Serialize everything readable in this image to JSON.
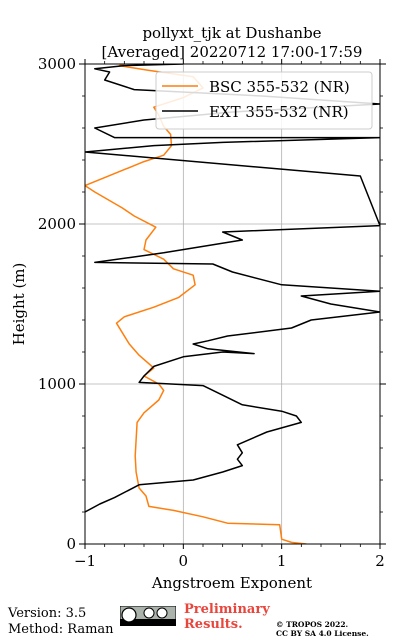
{
  "chart_data": {
    "type": "line",
    "title": "pollyxt_tjk at Dushanbe",
    "subtitle": "[Averaged] 20220712 17:00-17:59",
    "xlabel": "Angstroem Exponent",
    "ylabel": "Height (m)",
    "xlim": [
      -1,
      2
    ],
    "ylim": [
      0,
      3000
    ],
    "x_ticks": [
      "−1",
      "0",
      "1",
      "2"
    ],
    "y_ticks": [
      "0",
      "1000",
      "2000",
      "3000"
    ],
    "grid": true,
    "legend_position": "top-right",
    "series": [
      {
        "name": "BSC 355-532 (NR)",
        "color": "#ff7f0e",
        "points": [
          [
            1.25,
            0
          ],
          [
            1.1,
            10
          ],
          [
            1.0,
            30
          ],
          [
            0.98,
            120
          ],
          [
            0.45,
            130
          ],
          [
            0.2,
            170
          ],
          [
            -0.1,
            210
          ],
          [
            -0.35,
            235
          ],
          [
            -0.38,
            300
          ],
          [
            -0.45,
            350
          ],
          [
            -0.48,
            450
          ],
          [
            -0.49,
            550
          ],
          [
            -0.48,
            650
          ],
          [
            -0.47,
            760
          ],
          [
            -0.4,
            820
          ],
          [
            -0.25,
            900
          ],
          [
            -0.2,
            960
          ],
          [
            -0.25,
            1000
          ],
          [
            -0.4,
            1050
          ],
          [
            -0.3,
            1100
          ],
          [
            -0.45,
            1180
          ],
          [
            -0.55,
            1250
          ],
          [
            -0.62,
            1320
          ],
          [
            -0.68,
            1380
          ],
          [
            -0.6,
            1420
          ],
          [
            -0.3,
            1480
          ],
          [
            -0.05,
            1540
          ],
          [
            0.12,
            1620
          ],
          [
            0.1,
            1680
          ],
          [
            -0.1,
            1720
          ],
          [
            -0.2,
            1780
          ],
          [
            -0.4,
            1840
          ],
          [
            -0.38,
            1900
          ],
          [
            -0.28,
            1980
          ],
          [
            -0.5,
            2050
          ],
          [
            -0.62,
            2100
          ],
          [
            -0.9,
            2200
          ],
          [
            -1.0,
            2240
          ],
          [
            -0.8,
            2290
          ],
          [
            -0.6,
            2340
          ],
          [
            -0.4,
            2390
          ],
          [
            -0.2,
            2430
          ],
          [
            -0.12,
            2490
          ],
          [
            -0.13,
            2560
          ],
          [
            -0.2,
            2610
          ],
          [
            -0.25,
            2680
          ],
          [
            -0.3,
            2730
          ],
          [
            0.0,
            2790
          ],
          [
            0.2,
            2850
          ],
          [
            0.1,
            2920
          ],
          [
            -0.35,
            2960
          ],
          [
            -0.65,
            2990
          ],
          [
            -0.6,
            3000
          ]
        ]
      },
      {
        "name": "EXT 355-532 (NR)",
        "color": "#000000",
        "points": [
          [
            -1.0,
            200
          ],
          [
            -0.85,
            250
          ],
          [
            -0.7,
            290
          ],
          [
            -0.45,
            370
          ],
          [
            0.1,
            400
          ],
          [
            0.4,
            450
          ],
          [
            0.6,
            490
          ],
          [
            0.55,
            530
          ],
          [
            0.6,
            570
          ],
          [
            0.55,
            620
          ],
          [
            0.85,
            700
          ],
          [
            1.2,
            760
          ],
          [
            1.15,
            800
          ],
          [
            1.0,
            830
          ],
          [
            0.6,
            870
          ],
          [
            0.4,
            930
          ],
          [
            0.2,
            990
          ],
          [
            -0.45,
            1010
          ],
          [
            -0.4,
            1050
          ],
          [
            -0.3,
            1110
          ],
          [
            0.0,
            1170
          ],
          [
            0.4,
            1200
          ],
          [
            0.72,
            1190
          ],
          [
            0.25,
            1220
          ],
          [
            0.1,
            1250
          ],
          [
            0.25,
            1270
          ],
          [
            0.45,
            1300
          ],
          [
            1.1,
            1350
          ],
          [
            1.3,
            1400
          ],
          [
            2.0,
            1450
          ],
          [
            1.5,
            1500
          ],
          [
            1.2,
            1550
          ],
          [
            2.0,
            1580
          ],
          [
            1.0,
            1620
          ],
          [
            0.5,
            1700
          ],
          [
            0.3,
            1750
          ],
          [
            -0.9,
            1760
          ],
          [
            -0.55,
            1790
          ],
          [
            -0.2,
            1820
          ],
          [
            0.6,
            1900
          ],
          [
            0.4,
            1950
          ],
          [
            2.0,
            1990
          ],
          [
            1.8,
            2300
          ],
          [
            -1.0,
            2450
          ],
          [
            -0.3,
            2490
          ],
          [
            0.4,
            2510
          ],
          [
            2.0,
            2540
          ],
          [
            -0.7,
            2540
          ],
          [
            -0.9,
            2600
          ],
          [
            -0.4,
            2650
          ],
          [
            0.5,
            2700
          ],
          [
            2.0,
            2750
          ],
          [
            0.8,
            2800
          ],
          [
            -0.5,
            2840
          ],
          [
            -0.8,
            2900
          ],
          [
            -0.75,
            2950
          ],
          [
            -0.9,
            2970
          ],
          [
            -0.6,
            2990
          ],
          [
            0.0,
            3000
          ]
        ]
      }
    ]
  },
  "footer": {
    "version": "Version: 3.5",
    "method": "Method: Raman",
    "cc_badge": "cc-by-sa-badge",
    "preliminary_line1": "Preliminary",
    "preliminary_line2": "Results.",
    "copyright_line1": "© TROPOS 2022.",
    "copyright_line2": "CC BY SA 4.0 License."
  }
}
